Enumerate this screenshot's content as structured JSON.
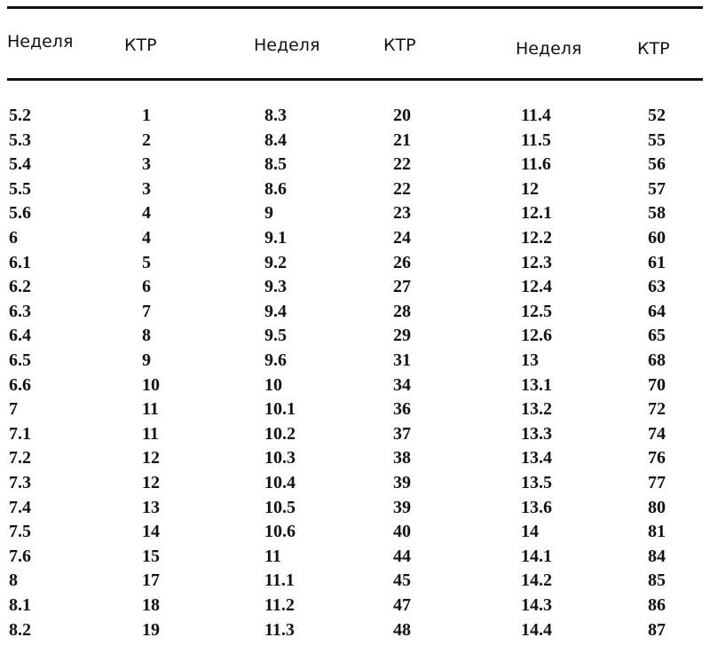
{
  "table": {
    "headers": [
      "Неделя",
      "КТР",
      "Неделя",
      "КТР",
      "Неделя",
      "КТР"
    ],
    "rows": [
      [
        "5.2",
        "1",
        "8.3",
        "20",
        "11.4",
        "52"
      ],
      [
        "5.3",
        "2",
        "8.4",
        "21",
        "11.5",
        "55"
      ],
      [
        "5.4",
        "3",
        "8.5",
        "22",
        "11.6",
        "56"
      ],
      [
        "5.5",
        "3",
        "8.6",
        "22",
        "12",
        "57"
      ],
      [
        "5.6",
        "4",
        "9",
        "23",
        "12.1",
        "58"
      ],
      [
        "6",
        "4",
        "9.1",
        "24",
        "12.2",
        "60"
      ],
      [
        "6.1",
        "5",
        "9.2",
        "26",
        "12.3",
        "61"
      ],
      [
        "6.2",
        "6",
        "9.3",
        "27",
        "12.4",
        "63"
      ],
      [
        "6.3",
        "7",
        "9.4",
        "28",
        "12.5",
        "64"
      ],
      [
        "6.4",
        "8",
        "9.5",
        "29",
        "12.6",
        "65"
      ],
      [
        "6.5",
        "9",
        "9.6",
        "31",
        "13",
        "68"
      ],
      [
        "6.6",
        "10",
        "10",
        "34",
        "13.1",
        "70"
      ],
      [
        "7",
        "11",
        "10.1",
        "36",
        "13.2",
        "72"
      ],
      [
        "7.1",
        "11",
        "10.2",
        "37",
        "13.3",
        "74"
      ],
      [
        "7.2",
        "12",
        "10.3",
        "38",
        "13.4",
        "76"
      ],
      [
        "7.3",
        "12",
        "10.4",
        "39",
        "13.5",
        "77"
      ],
      [
        "7.4",
        "13",
        "10.5",
        "39",
        "13.6",
        "80"
      ],
      [
        "7.5",
        "14",
        "10.6",
        "40",
        "14",
        "81"
      ],
      [
        "7.6",
        "15",
        "11",
        "44",
        "14.1",
        "84"
      ],
      [
        "8",
        "17",
        "11.1",
        "45",
        "14.2",
        "85"
      ],
      [
        "8.1",
        "18",
        "11.2",
        "47",
        "14.3",
        "86"
      ],
      [
        "8.2",
        "19",
        "11.3",
        "48",
        "14.4",
        "87"
      ]
    ]
  }
}
